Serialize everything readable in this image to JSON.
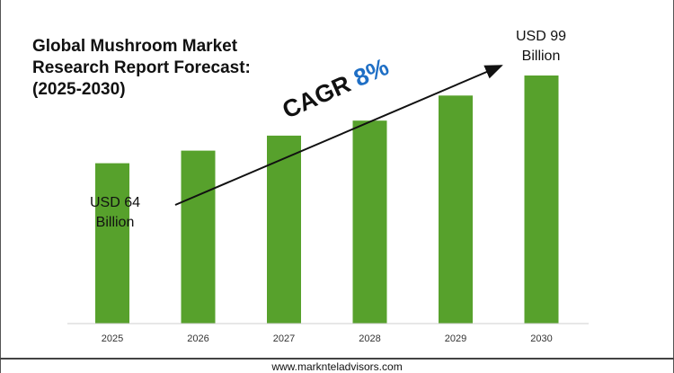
{
  "title_lines": [
    "Global Mushroom Market",
    "Research Report Forecast:",
    "(2025-2030)"
  ],
  "annotations": {
    "start": [
      "USD 64",
      "Billion"
    ],
    "end": [
      "USD 99",
      "Billion"
    ],
    "cagr_label": "CAGR",
    "cagr_value": "8%"
  },
  "footer": "www.marknteladvisors.com",
  "colors": {
    "bar": "#57a12c",
    "cagr_value": "#1f6fc5",
    "axis": "#cfcfcf"
  },
  "chart_data": {
    "type": "bar",
    "title": "Global Mushroom Market Research Report Forecast: (2025-2030)",
    "categories": [
      "2025",
      "2026",
      "2027",
      "2028",
      "2029",
      "2030"
    ],
    "values": [
      64,
      69,
      75,
      81,
      91,
      99
    ],
    "unit": "USD Billion",
    "ylim": [
      0,
      100
    ],
    "grid": false,
    "legend": "none",
    "annotations": [
      "USD 64 Billion",
      "USD 99 Billion",
      "CAGR 8%"
    ]
  }
}
